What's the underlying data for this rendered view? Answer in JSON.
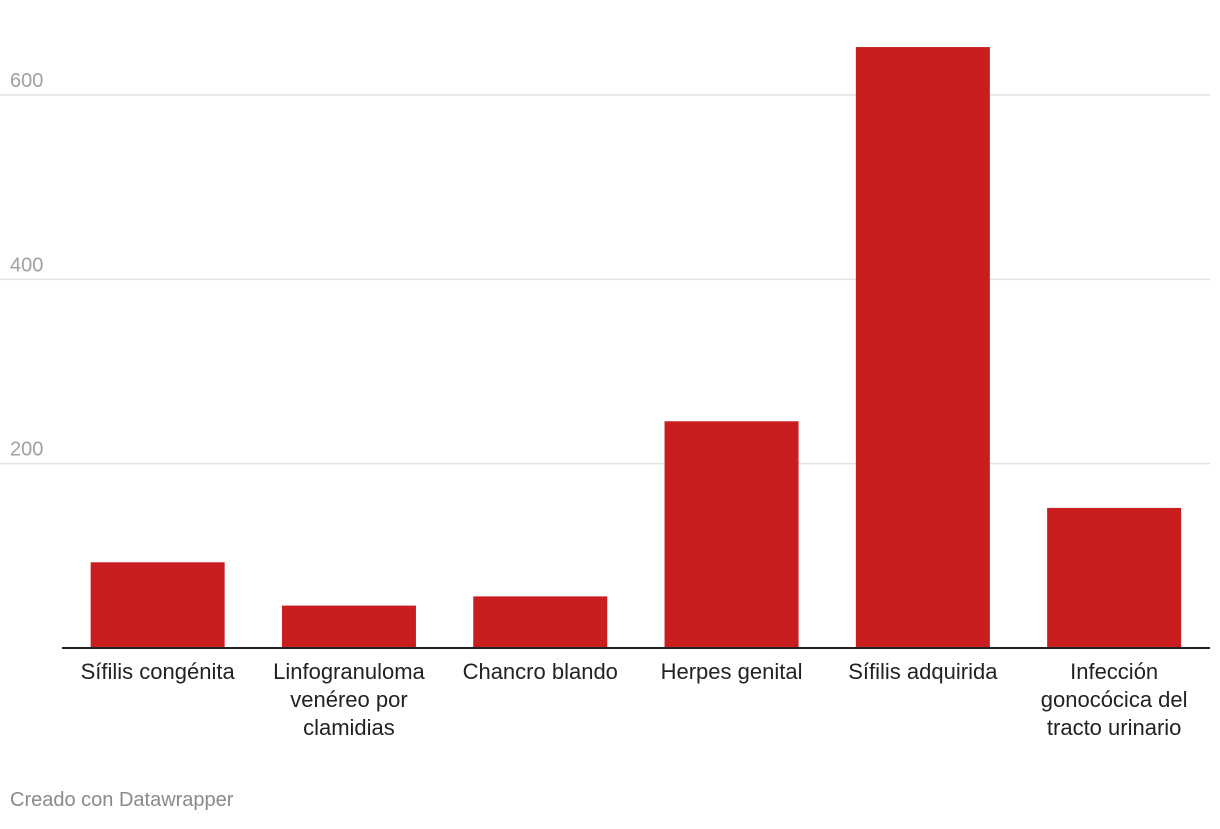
{
  "chart_data": {
    "type": "bar",
    "title": "",
    "xlabel": "",
    "ylabel": "",
    "categories": [
      [
        "Sífilis congénita"
      ],
      [
        "Linfogranuloma",
        "venéreo por",
        "clamidias"
      ],
      [
        "Chancro blando"
      ],
      [
        "Herpes genital"
      ],
      [
        "Sífilis adquirida"
      ],
      [
        "Infección",
        "gonocócica del",
        "tracto urinario"
      ]
    ],
    "values": [
      93,
      46,
      56,
      246,
      652,
      152
    ],
    "ylim": [
      0,
      680
    ],
    "yticks": [
      200,
      400,
      600
    ],
    "grid": true,
    "bar_color": "#c91d1f",
    "grid_color": "#e2e2e2",
    "tick_label_color": "#a0a0a0",
    "category_label_color": "#222222",
    "axis_color": "#222222"
  },
  "footer": {
    "credit": "Creado con Datawrapper"
  }
}
